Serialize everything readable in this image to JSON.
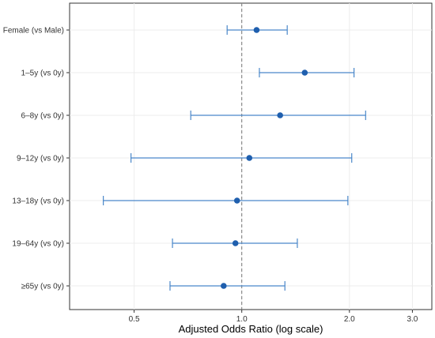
{
  "chart_data": {
    "type": "forest",
    "title": "",
    "xlabel": "Adjusted Odds Ratio (log scale)",
    "ylabel": "",
    "x_scale": "log",
    "xlim": [
      0.33,
      3.4
    ],
    "x_ticks": [
      {
        "value": 0.5,
        "label": "0.5"
      },
      {
        "value": 1.0,
        "label": "1.0"
      },
      {
        "value": 2.0,
        "label": "2.0"
      },
      {
        "value": 3.0,
        "label": "3.0"
      }
    ],
    "reference_line": 1.0,
    "grid": true,
    "categories": [
      "Female (vs Male)",
      "1–5y (vs 0y)",
      "6–8y (vs 0y)",
      "9–12y (vs 0y)",
      "13–18y (vs 0y)",
      "19–64y (vs 0y)",
      "≥65y (vs 0y)"
    ],
    "estimates": [
      1.1,
      1.5,
      1.28,
      1.05,
      0.97,
      0.96,
      0.89
    ],
    "ci_lower": [
      0.91,
      1.12,
      0.72,
      0.49,
      0.41,
      0.64,
      0.63
    ],
    "ci_upper": [
      1.34,
      2.06,
      2.22,
      2.03,
      1.98,
      1.43,
      1.32
    ],
    "colors": {
      "point": "#1f5fae",
      "bar": "#4a87c9",
      "reference": "#777777",
      "grid": "#ececec"
    }
  }
}
